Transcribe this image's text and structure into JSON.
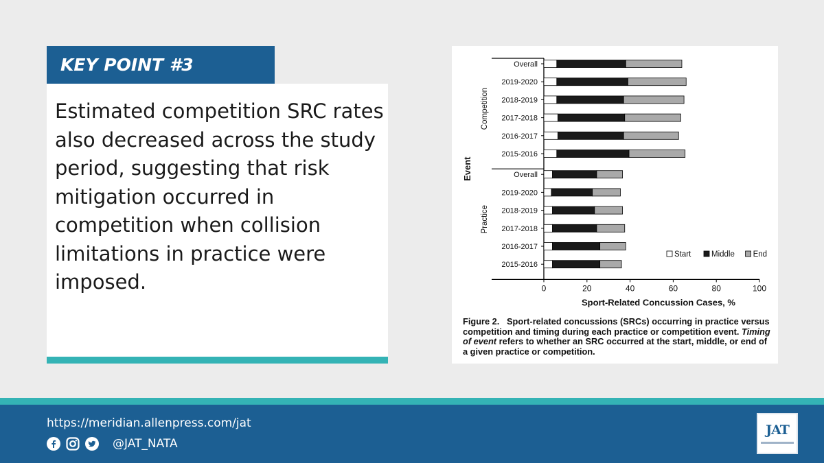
{
  "keypoint": {
    "title": "KEY POINT #3"
  },
  "body": {
    "text": "Estimated competition SRC rates also decreased across the study period, suggesting that risk mitigation occurred in competition when collision limitations in practice were imposed."
  },
  "figure": {
    "caption_prefix": "Figure 2.",
    "caption_main": "Sport-related concussions (SRCs) occurring in practice versus competition and timing during each practice or competition event.",
    "caption_italic": "Timing of event",
    "caption_tail": "refers to whether an SRC occurred at the start, middle, or end of a given practice or competition."
  },
  "chart_data": {
    "type": "bar",
    "orientation": "horizontal",
    "stacked": true,
    "xlabel": "Sport-Related Concussion Cases, %",
    "ylabel": "Event",
    "xlim": [
      0,
      100
    ],
    "xticks": [
      0,
      20,
      40,
      60,
      80,
      100
    ],
    "groups": [
      {
        "name": "Competition",
        "categories": [
          "Overall",
          "2019-2020",
          "2018-2019",
          "2017-2018",
          "2016-2017",
          "2015-2016"
        ]
      },
      {
        "name": "Practice",
        "categories": [
          "Overall",
          "2019-2020",
          "2018-2019",
          "2017-2018",
          "2016-2017",
          "2015-2016"
        ]
      }
    ],
    "series": [
      {
        "name": "Start",
        "color": "#ffffff",
        "values": [
          6,
          6,
          6,
          6.5,
          6.5,
          6,
          4,
          3.5,
          4,
          4,
          4,
          4
        ]
      },
      {
        "name": "Middle",
        "color": "#1a1a1a",
        "values": [
          32,
          33,
          31,
          31,
          30.5,
          33.5,
          20.5,
          19,
          19.5,
          20.5,
          22,
          22
        ]
      },
      {
        "name": "End",
        "color": "#a9a9a9",
        "values": [
          26,
          27,
          28,
          26,
          25.5,
          26,
          12,
          13,
          13,
          13,
          12,
          10
        ]
      }
    ],
    "legend_position": "bottom-right",
    "grid": false
  },
  "footer": {
    "url": "https://meridian.allenpress.com/jat",
    "handle": "@JAT_NATA",
    "logo_text": "JAT",
    "icons": [
      "facebook-icon",
      "instagram-icon",
      "twitter-icon"
    ]
  },
  "colors": {
    "brand_blue": "#1c5f93",
    "accent_teal": "#34b3b5"
  }
}
